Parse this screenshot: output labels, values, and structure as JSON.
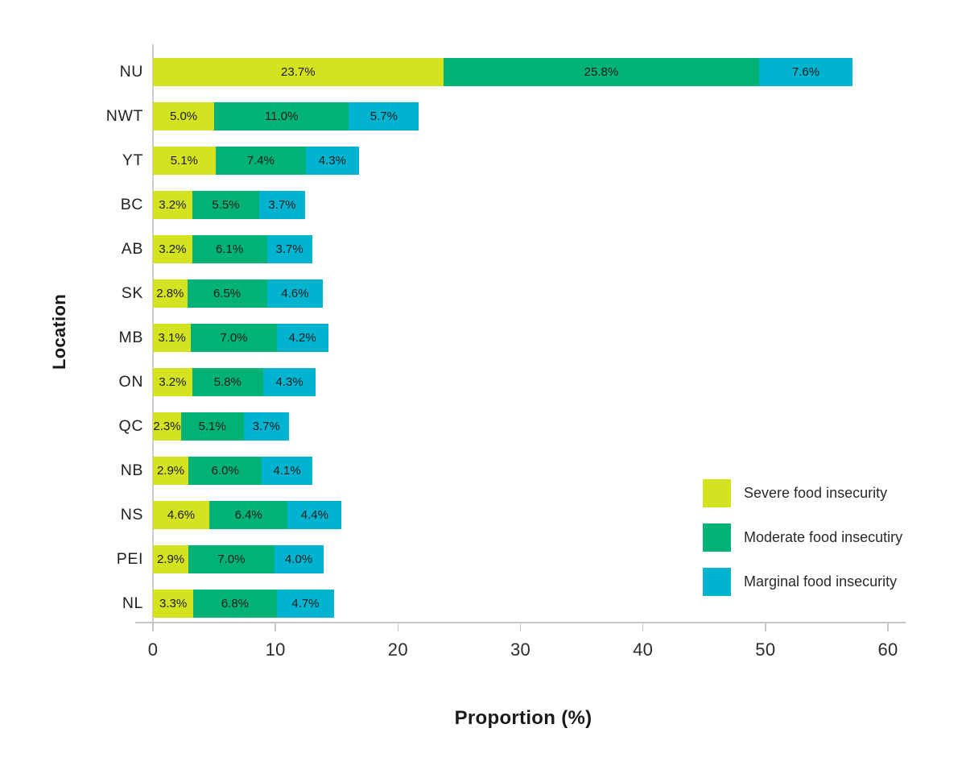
{
  "chart_data": {
    "type": "bar",
    "orientation": "horizontal",
    "stacked": true,
    "title": "",
    "xlabel": "Proportion (%)",
    "ylabel": "Location",
    "xlim": [
      0,
      60
    ],
    "xticks": [
      0,
      10,
      20,
      30,
      40,
      50,
      60
    ],
    "grid": false,
    "legend_position": "inside-lower-right",
    "value_label_format": "one-decimal-percent",
    "categories": [
      "NU",
      "NWT",
      "YT",
      "BC",
      "AB",
      "SK",
      "MB",
      "ON",
      "QC",
      "NB",
      "NS",
      "PEI",
      "NL"
    ],
    "series": [
      {
        "name": "Severe food insecurity",
        "color": "#d4e320",
        "values": [
          23.7,
          5.0,
          5.1,
          3.2,
          3.2,
          2.8,
          3.1,
          3.2,
          2.3,
          2.9,
          4.6,
          2.9,
          3.3
        ]
      },
      {
        "name": "Moderate food insecutiry",
        "color": "#00b278",
        "values": [
          25.8,
          11.0,
          7.4,
          5.5,
          6.1,
          6.5,
          7.0,
          5.8,
          5.1,
          6.0,
          6.4,
          7.0,
          6.8
        ]
      },
      {
        "name": "Marginal food insecurity",
        "color": "#00b3cf",
        "values": [
          7.6,
          5.7,
          4.3,
          3.7,
          3.7,
          4.6,
          4.2,
          4.3,
          3.7,
          4.1,
          4.4,
          4.0,
          4.7
        ]
      }
    ],
    "colors": {
      "axis_line": "#c6c6c6",
      "tick_label": "#2b2b2b",
      "bar_value_label": "#1b1b1b",
      "axis_title": "#1a1a1a",
      "background": "#ffffff"
    }
  }
}
